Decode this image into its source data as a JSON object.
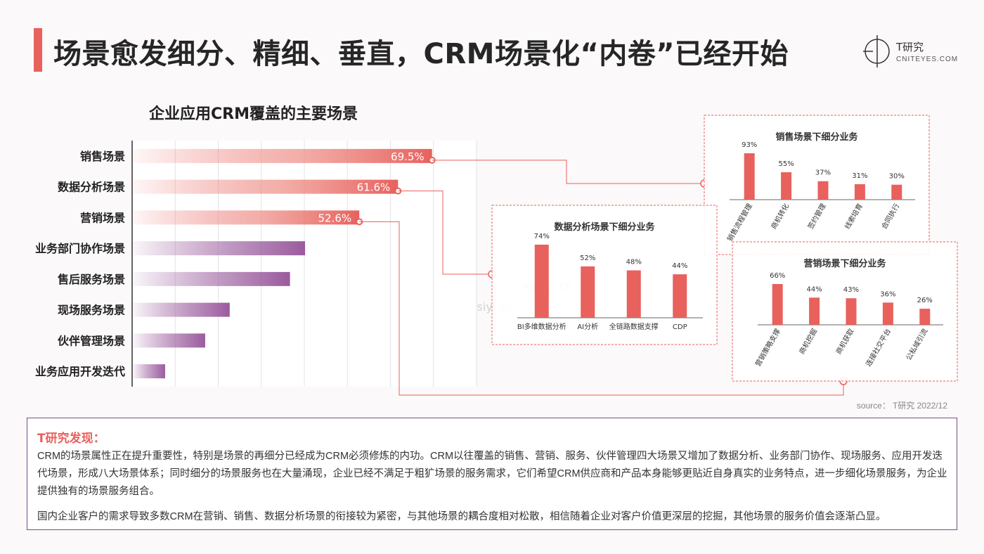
{
  "header": {
    "title": "场景愈发细分、精细、垂直，CRM场景化“内卷”已经开始",
    "logo_text": "T研究",
    "logo_url_text": "CNITEYES.COM"
  },
  "colors": {
    "accent": "#e8615d",
    "purple": "#9b5a9e",
    "panel_border": "#e8615d",
    "findings_border": "#7b4a8c"
  },
  "watermark": "kesiyi.cn",
  "chart_data": [
    {
      "type": "bar",
      "orientation": "horizontal",
      "title": "企业应用CRM覆盖的主要场景",
      "categories": [
        "销售场景",
        "数据分析场景",
        "营销场景",
        "业务部门协作场景",
        "售后服务场景",
        "现场服务场景",
        "伙伴管理场景",
        "业务应用开发迭代"
      ],
      "values": [
        69.5,
        61.6,
        52.6,
        40.0,
        36.5,
        22.5,
        16.8,
        7.5
      ],
      "labels": [
        "69.5%",
        "61.6%",
        "52.6%",
        "",
        "",
        "",
        "",
        ""
      ],
      "colors": [
        "#e8615d",
        "#e8615d",
        "#e8615d",
        "#9b5a9e",
        "#9b5a9e",
        "#9b5a9e",
        "#9b5a9e",
        "#9b5a9e"
      ],
      "xlim": [
        0,
        80
      ],
      "grid": true
    },
    {
      "type": "bar",
      "title": "销售场景下细分业务",
      "categories": [
        "销售流程管理",
        "商机转化",
        "签约管理",
        "线索培育",
        "合同执行"
      ],
      "values": [
        93,
        55,
        37,
        31,
        30
      ],
      "labels": [
        "93%",
        "55%",
        "37%",
        "31%",
        "30%"
      ]
    },
    {
      "type": "bar",
      "title": "数据分析场景下细分业务",
      "categories": [
        "BI多维数据分析",
        "AI分析",
        "全链路数据支撑",
        "CDP"
      ],
      "values": [
        74,
        52,
        48,
        44
      ],
      "labels": [
        "74%",
        "52%",
        "48%",
        "44%"
      ]
    },
    {
      "type": "bar",
      "title": "营销场景下细分业务",
      "categories": [
        "营销策略支撑",
        "商机挖掘",
        "商机获取",
        "连接社交平台",
        "公私域引流"
      ],
      "values": [
        66,
        44,
        43,
        36,
        26
      ],
      "labels": [
        "66%",
        "44%",
        "43%",
        "36%",
        "26%"
      ]
    }
  ],
  "source": "source： T研究 2022/12",
  "findings": {
    "title": "T研究发现：",
    "para1": "CRM的场景属性正在提升重要性，特别是场景的再细分已经成为CRM必须修炼的内功。CRM以往覆盖的销售、营销、服务、伙伴管理四大场景又增加了数据分析、业务部门协作、现场服务、应用开发迭代场景，形成八大场景体系；同时细分的场景服务也在大量涌现，企业已经不满足于粗犷场景的服务需求，它们希望CRM供应商和产品本身能够更贴近自身真实的业务特点，进一步细化场景服务，为企业提供独有的场景服务组合。",
    "para2": "国内企业客户的需求导致多数CRM在营销、销售、数据分析场景的衔接较为紧密，与其他场景的耦合度相对松散，相信随着企业对客户价值更深层的挖掘，其他场景的服务价值会逐渐凸显。"
  }
}
